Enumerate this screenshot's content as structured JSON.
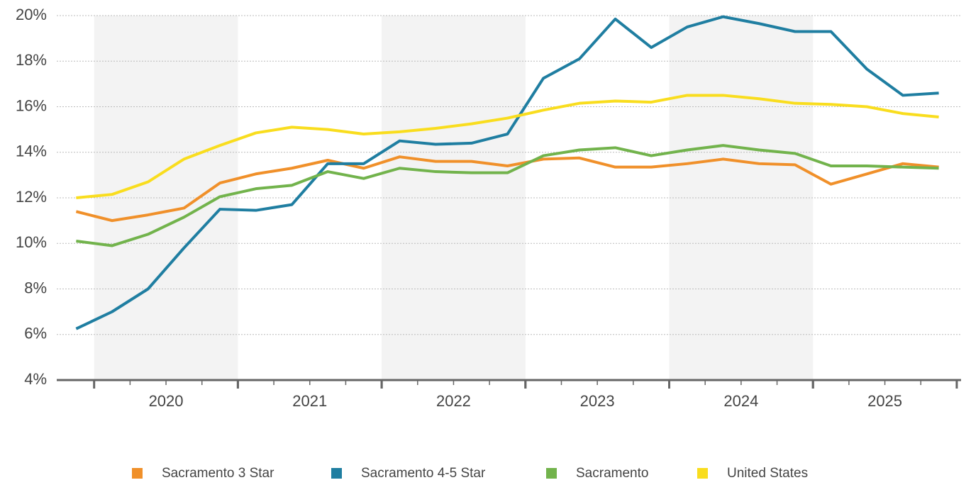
{
  "chart_data": {
    "type": "line",
    "x": [
      2019.875,
      2020.125,
      2020.375,
      2020.625,
      2020.875,
      2021.125,
      2021.375,
      2021.625,
      2021.875,
      2022.125,
      2022.375,
      2022.625,
      2022.875,
      2023.125,
      2023.375,
      2023.625,
      2023.875,
      2024.125,
      2024.375,
      2024.625,
      2024.875,
      2025.125,
      2025.375,
      2025.625,
      2025.875
    ],
    "series": [
      {
        "name": "Sacramento 3 Star",
        "color": "#f0902a",
        "values": [
          11.4,
          11.0,
          11.25,
          11.55,
          12.65,
          13.05,
          13.3,
          13.65,
          13.3,
          13.8,
          13.6,
          13.6,
          13.4,
          13.7,
          13.75,
          13.35,
          13.35,
          13.5,
          13.7,
          13.5,
          13.45,
          12.6,
          13.05,
          13.5,
          13.35
        ]
      },
      {
        "name": "Sacramento 4-5 Star",
        "color": "#1f7ea1",
        "values": [
          6.25,
          7.0,
          8.0,
          9.8,
          11.5,
          11.45,
          11.7,
          13.5,
          13.5,
          14.5,
          14.35,
          14.4,
          14.8,
          17.25,
          18.1,
          19.85,
          18.6,
          19.5,
          19.95,
          19.65,
          19.3,
          19.3,
          17.65,
          16.5,
          16.6
        ]
      },
      {
        "name": "Sacramento",
        "color": "#72b34c",
        "values": [
          10.1,
          9.9,
          10.4,
          11.15,
          12.05,
          12.4,
          12.55,
          13.15,
          12.85,
          13.3,
          13.15,
          13.1,
          13.1,
          13.85,
          14.1,
          14.2,
          13.85,
          14.1,
          14.3,
          14.1,
          13.95,
          13.4,
          13.4,
          13.35,
          13.3
        ]
      },
      {
        "name": "United States",
        "color": "#f9dd1e",
        "values": [
          12.0,
          12.15,
          12.7,
          13.7,
          14.3,
          14.85,
          15.1,
          15.0,
          14.8,
          14.9,
          15.05,
          15.25,
          15.5,
          15.85,
          16.15,
          16.25,
          16.2,
          16.5,
          16.5,
          16.35,
          16.15,
          16.1,
          16.0,
          15.7,
          15.55
        ]
      }
    ],
    "xlim": [
      2019.74,
      2026.03
    ],
    "xticks": [
      {
        "value": 2020.5,
        "label": "2020"
      },
      {
        "value": 2021.5,
        "label": "2021"
      },
      {
        "value": 2022.5,
        "label": "2022"
      },
      {
        "value": 2023.5,
        "label": "2023"
      },
      {
        "value": 2024.5,
        "label": "2024"
      },
      {
        "value": 2025.5,
        "label": "2025"
      }
    ],
    "ylim": [
      4,
      20
    ],
    "yticks": [
      {
        "value": 4,
        "label": "4%"
      },
      {
        "value": 6,
        "label": "6%"
      },
      {
        "value": 8,
        "label": "8%"
      },
      {
        "value": 10,
        "label": "10%"
      },
      {
        "value": 12,
        "label": "12%"
      },
      {
        "value": 14,
        "label": "14%"
      },
      {
        "value": 16,
        "label": "16%"
      },
      {
        "value": 18,
        "label": "18%"
      },
      {
        "value": 20,
        "label": "20%"
      }
    ],
    "grid": true,
    "legend": "bottom"
  }
}
